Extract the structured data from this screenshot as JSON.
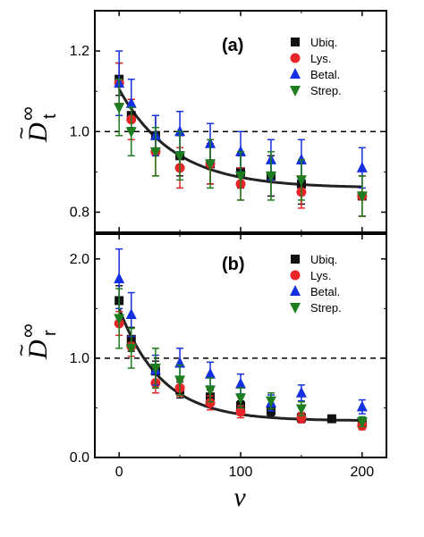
{
  "chart_data": {
    "type": "scatter",
    "xlabel": "ν",
    "x_ticks": [
      "0",
      "100",
      "200"
    ],
    "xlim": [
      -20,
      220
    ],
    "colors": {
      "Ubiq.": "#111111",
      "Lys.": "#e8262a",
      "Betal.": "#1530e0",
      "Strep.": "#1e7d1e"
    },
    "panels": [
      {
        "label": "(a)",
        "ylabel": {
          "main": "D",
          "tilde": "~",
          "sub": "t",
          "sup": "∞"
        },
        "ylim": [
          0.75,
          1.3
        ],
        "y_ticks": [
          0.8,
          1.0,
          1.2
        ],
        "y_tick_labels": [
          "0.8",
          "1.0",
          "1.2"
        ],
        "reference_line": 1.0,
        "fit_curve": {
          "type": "exponential_decay",
          "y0": 0.86,
          "A": 0.245,
          "tau": 45
        },
        "legend": [
          "Ubiq.",
          "Lys.",
          "Betal.",
          "Strep."
        ],
        "series": [
          {
            "name": "Ubiq.",
            "marker": "square",
            "x": [
              0,
              10,
              30,
              50,
              75,
              100,
              125,
              150,
              200
            ],
            "y": [
              1.13,
              1.04,
              0.99,
              0.94,
              0.92,
              0.9,
              0.89,
              0.87,
              0.84
            ],
            "err": [
              0.04,
              0.04,
              0.05,
              0.05,
              0.05,
              0.04,
              0.05,
              0.05,
              0.05
            ]
          },
          {
            "name": "Lys.",
            "marker": "circle",
            "x": [
              0,
              10,
              30,
              50,
              75,
              100,
              150,
              200
            ],
            "y": [
              1.12,
              1.03,
              0.95,
              0.91,
              0.92,
              0.87,
              0.85,
              0.84
            ],
            "err": [
              0.05,
              0.05,
              0.06,
              0.05,
              0.05,
              0.04,
              0.04,
              0.05
            ]
          },
          {
            "name": "Betal.",
            "marker": "triangle-up",
            "x": [
              0,
              10,
              30,
              50,
              75,
              100,
              125,
              150,
              200
            ],
            "y": [
              1.12,
              1.07,
              0.99,
              1.0,
              0.97,
              0.95,
              0.93,
              0.93,
              0.91
            ],
            "err": [
              0.08,
              0.06,
              0.05,
              0.05,
              0.05,
              0.05,
              0.05,
              0.05,
              0.05
            ]
          },
          {
            "name": "Strep.",
            "marker": "triangle-down",
            "x": [
              0,
              10,
              30,
              50,
              75,
              100,
              125,
              150,
              200
            ],
            "y": [
              1.06,
              1.0,
              0.95,
              0.94,
              0.92,
              0.89,
              0.89,
              0.88,
              0.84
            ],
            "err": [
              0.07,
              0.06,
              0.06,
              0.06,
              0.06,
              0.06,
              0.06,
              0.05,
              0.05
            ]
          }
        ]
      },
      {
        "label": "(b)",
        "ylabel": {
          "main": "D",
          "tilde": "~",
          "sub": "r",
          "sup": "∞"
        },
        "ylim": [
          0,
          2.25
        ],
        "y_ticks": [
          0,
          1.0,
          2.0
        ],
        "y_tick_labels": [
          "0.0",
          "1.0",
          "2.0"
        ],
        "reference_line": 1.0,
        "fit_curve": {
          "type": "exponential_decay",
          "y0": 0.37,
          "A": 1.13,
          "tau": 35
        },
        "legend": [
          "Ubiq.",
          "Lys.",
          "Betal.",
          "Strep."
        ],
        "series": [
          {
            "name": "Ubiq.",
            "marker": "square",
            "x": [
              0,
              10,
              30,
              50,
              75,
              100,
              125,
              150,
              175,
              200
            ],
            "y": [
              1.58,
              1.19,
              0.87,
              0.68,
              0.61,
              0.52,
              0.47,
              0.4,
              0.39,
              0.35
            ],
            "err": [
              0.15,
              0.12,
              0.1,
              0.08,
              0.07,
              0.05,
              0.05,
              0.05,
              0.03,
              0.04
            ]
          },
          {
            "name": "Lys.",
            "marker": "circle",
            "x": [
              0,
              10,
              30,
              50,
              75,
              100,
              150,
              200
            ],
            "y": [
              1.35,
              1.12,
              0.75,
              0.7,
              0.55,
              0.46,
              0.4,
              0.32
            ],
            "err": [
              0.12,
              0.1,
              0.1,
              0.08,
              0.07,
              0.06,
              0.05,
              0.04
            ]
          },
          {
            "name": "Betal.",
            "marker": "triangle-up",
            "x": [
              0,
              10,
              30,
              50,
              75,
              100,
              125,
              150,
              200
            ],
            "y": [
              1.8,
              1.44,
              0.88,
              0.95,
              0.84,
              0.74,
              0.55,
              0.65,
              0.51
            ],
            "err": [
              0.3,
              0.22,
              0.15,
              0.15,
              0.12,
              0.1,
              0.08,
              0.08,
              0.07
            ]
          },
          {
            "name": "Strep.",
            "marker": "triangle-down",
            "x": [
              0,
              10,
              30,
              50,
              75,
              100,
              125,
              150,
              200
            ],
            "y": [
              1.4,
              1.1,
              0.9,
              0.78,
              0.68,
              0.6,
              0.57,
              0.49,
              0.36
            ],
            "err": [
              0.3,
              0.2,
              0.2,
              0.15,
              0.12,
              0.1,
              0.08,
              0.07,
              0.05
            ]
          }
        ]
      }
    ]
  }
}
